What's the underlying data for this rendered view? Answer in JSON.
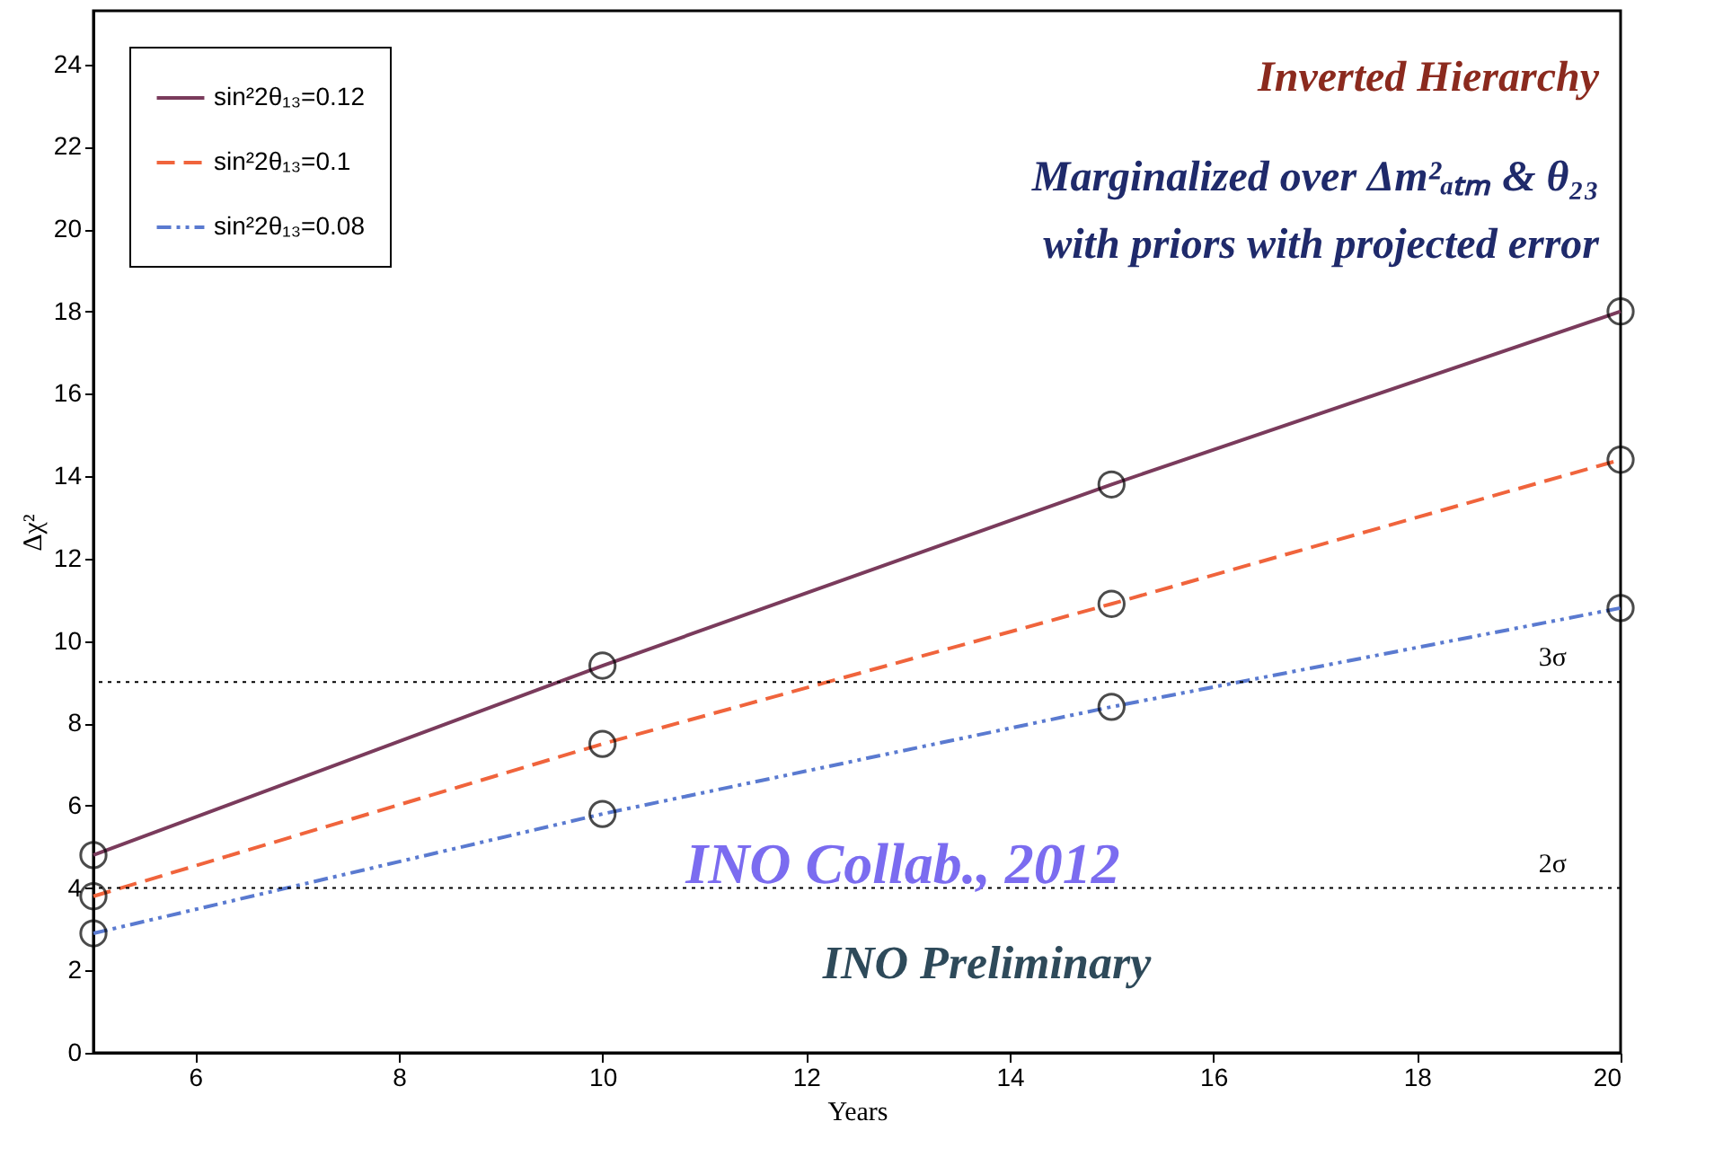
{
  "chart_data": {
    "type": "line",
    "xlabel": "Years",
    "ylabel": "Δχ²",
    "x": [
      5,
      10,
      15,
      20
    ],
    "series": [
      {
        "name": "sin²2θ₁₃=0.12",
        "color": "#7a3b5c",
        "line_style": "solid",
        "values": [
          4.8,
          9.4,
          13.8,
          18.0
        ]
      },
      {
        "name": "sin²2θ₁₃=0.1",
        "color": "#f0643c",
        "line_style": "dashed",
        "values": [
          3.8,
          7.5,
          10.9,
          14.4
        ]
      },
      {
        "name": "sin²2θ₁₃=0.08",
        "color": "#5a7ad0",
        "line_style": "dashdot",
        "values": [
          2.9,
          5.8,
          8.4,
          10.8
        ]
      }
    ],
    "marker": "circle",
    "xlim": [
      5,
      20
    ],
    "xticks": [
      6,
      8,
      10,
      12,
      14,
      16,
      18,
      20
    ],
    "ylim": [
      0,
      25.3
    ],
    "yticks": [
      0,
      2,
      4,
      6,
      8,
      10,
      12,
      14,
      16,
      18,
      20,
      22,
      24
    ],
    "grid": false,
    "legend": "top left",
    "ref_lines": [
      {
        "axis": "y",
        "value": 9,
        "label": "3σ",
        "line_style": "dotted"
      },
      {
        "axis": "y",
        "value": 4,
        "label": "2σ",
        "line_style": "dotted"
      }
    ],
    "annotations": [
      "Inverted Hierarchy",
      "Marginalized over Δm²ₐₜₘ & θ₂₃",
      "with priors with projected error",
      "INO Collab., 2012",
      "INO Preliminary"
    ]
  }
}
